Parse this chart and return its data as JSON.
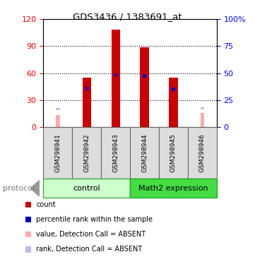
{
  "title": "GDS3436 / 1383691_at",
  "samples": [
    "GSM298941",
    "GSM298942",
    "GSM298943",
    "GSM298944",
    "GSM298945",
    "GSM298946"
  ],
  "red_values": [
    null,
    55,
    108,
    89,
    55,
    null
  ],
  "blue_values": [
    null,
    43,
    58,
    57,
    42,
    null
  ],
  "pink_values": [
    14,
    null,
    null,
    null,
    null,
    16
  ],
  "lavender_values": [
    20,
    null,
    null,
    null,
    null,
    21
  ],
  "ylim_left": [
    0,
    120
  ],
  "ylim_right": [
    0,
    100
  ],
  "left_ticks": [
    0,
    30,
    60,
    90,
    120
  ],
  "right_ticks": [
    0,
    25,
    50,
    75,
    100
  ],
  "right_tick_labels": [
    "0",
    "25",
    "50",
    "75",
    "100%"
  ],
  "red_color": "#cc0000",
  "blue_color": "#0000cc",
  "pink_color": "#ffaaaa",
  "lavender_color": "#bbbbee",
  "legend_items": [
    {
      "color": "#cc0000",
      "label": "count"
    },
    {
      "color": "#0000cc",
      "label": "percentile rank within the sample"
    },
    {
      "color": "#ffaaaa",
      "label": "value, Detection Call = ABSENT"
    },
    {
      "color": "#bbbbee",
      "label": "rank, Detection Call = ABSENT"
    }
  ],
  "protocol_label": "protocol",
  "control_label": "control",
  "math2_label": "Math2 expression",
  "control_bg": "#ccffcc",
  "math2_bg": "#44dd44",
  "label_bg": "#dddddd",
  "label_edge": "#666666"
}
